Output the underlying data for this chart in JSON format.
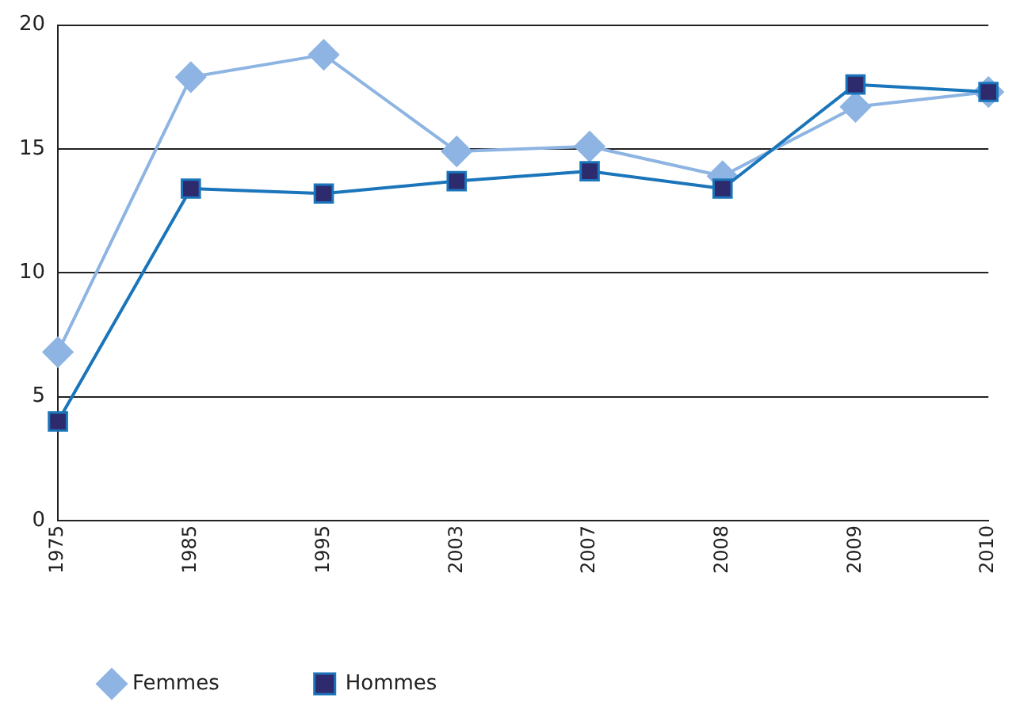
{
  "chart_data": {
    "type": "line",
    "categories": [
      "1975",
      "1985",
      "1995",
      "2003",
      "2007",
      "2008",
      "2009",
      "2010"
    ],
    "series": [
      {
        "name": "Femmes",
        "color": "#8db4e2",
        "marker": "diamond",
        "values": [
          6.8,
          17.9,
          18.8,
          14.9,
          15.1,
          13.9,
          16.7,
          17.3
        ]
      },
      {
        "name": "Hommes",
        "color": "#1a75bb",
        "marker": "square",
        "values": [
          4.0,
          13.4,
          13.2,
          13.7,
          14.1,
          13.4,
          17.6,
          17.3
        ]
      }
    ],
    "ylim": [
      0,
      20
    ],
    "yticks": [
      0,
      5,
      10,
      15,
      20
    ],
    "grid": "y",
    "legend": "bottom left",
    "line_style": "solid"
  }
}
